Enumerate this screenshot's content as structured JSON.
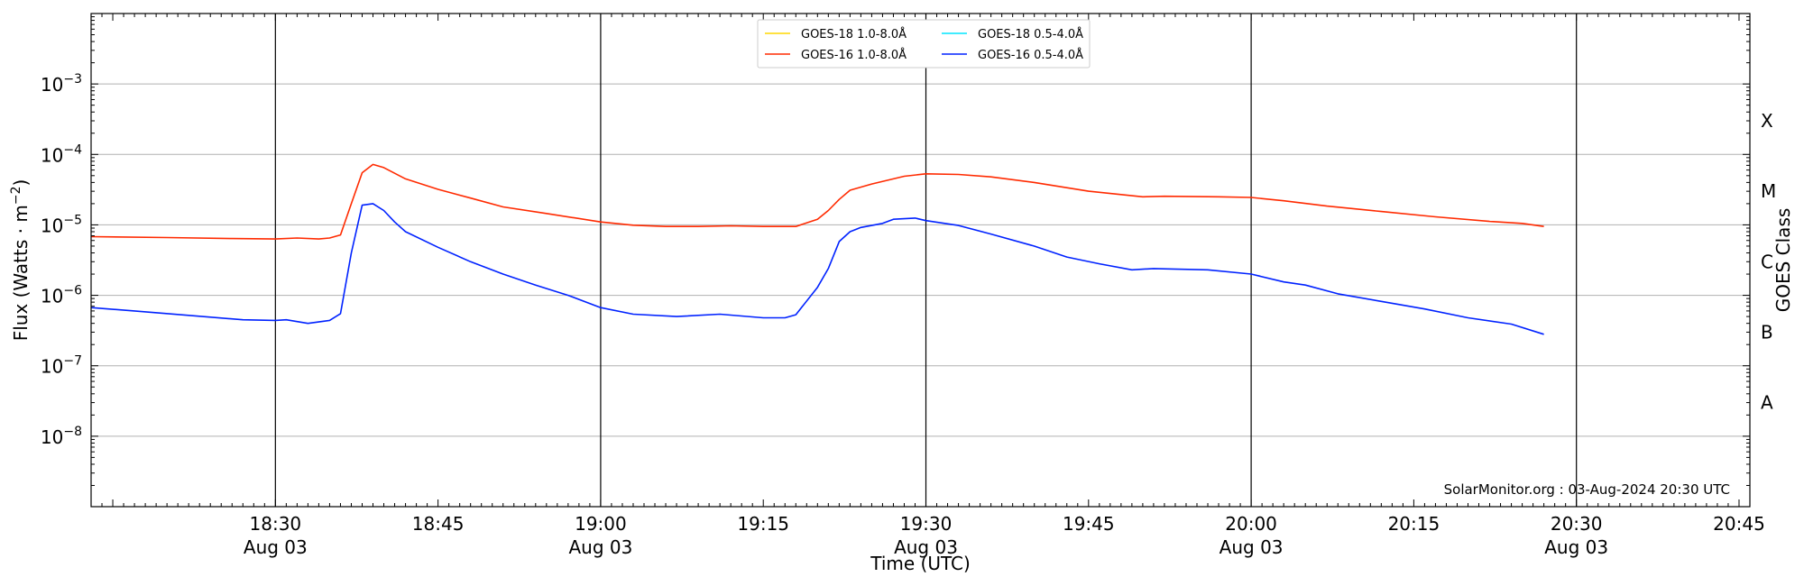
{
  "chart_data": {
    "type": "line",
    "x_scale": "time",
    "y_scale": "log",
    "xlabel": "Time (UTC)",
    "ylabel_pre": "Flux (Watts · m",
    "ylabel_exp": "−2",
    "ylabel_post": ")",
    "right_label": "GOES Class",
    "credit": "SolarMonitor.org : 03-Aug-2024 20:30 UTC",
    "xlim": [
      "18:13",
      "20:46"
    ],
    "ylim": [
      1e-09,
      0.01
    ],
    "x_ticks": [
      {
        "time": "18:30",
        "date": "Aug 03"
      },
      {
        "time": "18:45",
        "date": ""
      },
      {
        "time": "19:00",
        "date": "Aug 03"
      },
      {
        "time": "19:15",
        "date": ""
      },
      {
        "time": "19:30",
        "date": "Aug 03"
      },
      {
        "time": "19:45",
        "date": ""
      },
      {
        "time": "20:00",
        "date": "Aug 03"
      },
      {
        "time": "20:15",
        "date": ""
      },
      {
        "time": "20:30",
        "date": "Aug 03"
      },
      {
        "time": "20:45",
        "date": ""
      }
    ],
    "y_ticks": [
      {
        "value": 1e-08,
        "base": "10",
        "exp": "−8"
      },
      {
        "value": 1e-07,
        "base": "10",
        "exp": "−7"
      },
      {
        "value": 1e-06,
        "base": "10",
        "exp": "−6"
      },
      {
        "value": 1e-05,
        "base": "10",
        "exp": "−5"
      },
      {
        "value": 0.0001,
        "base": "10",
        "exp": "−4"
      },
      {
        "value": 0.001,
        "base": "10",
        "exp": "−3"
      }
    ],
    "date_lines": [
      "18:30",
      "19:00",
      "19:30",
      "20:00",
      "20:30"
    ],
    "grid": "horizontal",
    "goes_classes": [
      {
        "label": "A",
        "value": 3e-08
      },
      {
        "label": "B",
        "value": 3e-07
      },
      {
        "label": "C",
        "value": 3e-06
      },
      {
        "label": "M",
        "value": 3e-05
      },
      {
        "label": "X",
        "value": 0.0003
      }
    ],
    "legend_position": "upper-center",
    "series": [
      {
        "name": "GOES-18 1.0-8.0Å",
        "color": "#ffd700",
        "points": []
      },
      {
        "name": "GOES-18 0.5-4.0Å",
        "color": "#00e5ff",
        "points": []
      },
      {
        "name": "GOES-16 1.0-8.0Å",
        "color": "#ff2a00",
        "points": [
          [
            "18:13",
            6.8e-06
          ],
          [
            "18:20",
            6.6e-06
          ],
          [
            "18:26",
            6.4e-06
          ],
          [
            "18:30",
            6.3e-06
          ],
          [
            "18:32",
            6.5e-06
          ],
          [
            "18:34",
            6.3e-06
          ],
          [
            "18:35",
            6.5e-06
          ],
          [
            "18:36",
            7.2e-06
          ],
          [
            "18:37",
            2e-05
          ],
          [
            "18:38",
            5.5e-05
          ],
          [
            "18:39",
            7.2e-05
          ],
          [
            "18:40",
            6.5e-05
          ],
          [
            "18:42",
            4.5e-05
          ],
          [
            "18:45",
            3.2e-05
          ],
          [
            "18:48",
            2.4e-05
          ],
          [
            "18:51",
            1.8e-05
          ],
          [
            "18:55",
            1.45e-05
          ],
          [
            "19:00",
            1.1e-05
          ],
          [
            "19:03",
            9.9e-06
          ],
          [
            "19:06",
            9.5e-06
          ],
          [
            "19:09",
            9.5e-06
          ],
          [
            "19:12",
            9.7e-06
          ],
          [
            "19:15",
            9.5e-06
          ],
          [
            "19:18",
            9.5e-06
          ],
          [
            "19:20",
            1.2e-05
          ],
          [
            "19:21",
            1.6e-05
          ],
          [
            "19:22",
            2.3e-05
          ],
          [
            "19:23",
            3.1e-05
          ],
          [
            "19:25",
            3.8e-05
          ],
          [
            "19:28",
            4.9e-05
          ],
          [
            "19:30",
            5.3e-05
          ],
          [
            "19:33",
            5.2e-05
          ],
          [
            "19:36",
            4.8e-05
          ],
          [
            "19:40",
            4e-05
          ],
          [
            "19:45",
            3e-05
          ],
          [
            "19:50",
            2.5e-05
          ],
          [
            "19:52",
            2.55e-05
          ],
          [
            "19:57",
            2.5e-05
          ],
          [
            "20:00",
            2.45e-05
          ],
          [
            "20:03",
            2.2e-05
          ],
          [
            "20:07",
            1.85e-05
          ],
          [
            "20:12",
            1.55e-05
          ],
          [
            "20:17",
            1.3e-05
          ],
          [
            "20:22",
            1.12e-05
          ],
          [
            "20:25",
            1.05e-05
          ],
          [
            "20:27",
            9.5e-06
          ]
        ]
      },
      {
        "name": "GOES-16 0.5-4.0Å",
        "color": "#0022ff",
        "points": [
          [
            "18:13",
            6.7e-07
          ],
          [
            "18:17",
            6e-07
          ],
          [
            "18:22",
            5.2e-07
          ],
          [
            "18:27",
            4.5e-07
          ],
          [
            "18:30",
            4.4e-07
          ],
          [
            "18:31",
            4.5e-07
          ],
          [
            "18:33",
            4e-07
          ],
          [
            "18:35",
            4.4e-07
          ],
          [
            "18:36",
            5.5e-07
          ],
          [
            "18:37",
            4e-06
          ],
          [
            "18:38",
            1.9e-05
          ],
          [
            "18:39",
            2e-05
          ],
          [
            "18:40",
            1.6e-05
          ],
          [
            "18:41",
            1.1e-05
          ],
          [
            "18:42",
            8e-06
          ],
          [
            "18:45",
            4.8e-06
          ],
          [
            "18:48",
            3e-06
          ],
          [
            "18:51",
            2e-06
          ],
          [
            "18:54",
            1.4e-06
          ],
          [
            "18:57",
            1e-06
          ],
          [
            "19:00",
            6.7e-07
          ],
          [
            "19:03",
            5.4e-07
          ],
          [
            "19:07",
            5e-07
          ],
          [
            "19:11",
            5.4e-07
          ],
          [
            "19:15",
            4.8e-07
          ],
          [
            "19:17",
            4.8e-07
          ],
          [
            "19:18",
            5.3e-07
          ],
          [
            "19:20",
            1.3e-06
          ],
          [
            "19:21",
            2.4e-06
          ],
          [
            "19:22",
            5.8e-06
          ],
          [
            "19:23",
            8e-06
          ],
          [
            "19:24",
            9.2e-06
          ],
          [
            "19:26",
            1.05e-05
          ],
          [
            "19:27",
            1.2e-05
          ],
          [
            "19:29",
            1.25e-05
          ],
          [
            "19:30",
            1.15e-05
          ],
          [
            "19:33",
            9.8e-06
          ],
          [
            "19:36",
            7.4e-06
          ],
          [
            "19:40",
            5e-06
          ],
          [
            "19:43",
            3.5e-06
          ],
          [
            "19:46",
            2.8e-06
          ],
          [
            "19:49",
            2.3e-06
          ],
          [
            "19:51",
            2.4e-06
          ],
          [
            "19:56",
            2.3e-06
          ],
          [
            "20:00",
            2e-06
          ],
          [
            "20:03",
            1.55e-06
          ],
          [
            "20:05",
            1.4e-06
          ],
          [
            "20:08",
            1.05e-06
          ],
          [
            "20:12",
            8.2e-07
          ],
          [
            "20:16",
            6.4e-07
          ],
          [
            "20:20",
            4.8e-07
          ],
          [
            "20:24",
            3.9e-07
          ],
          [
            "20:27",
            2.8e-07
          ]
        ]
      }
    ]
  }
}
